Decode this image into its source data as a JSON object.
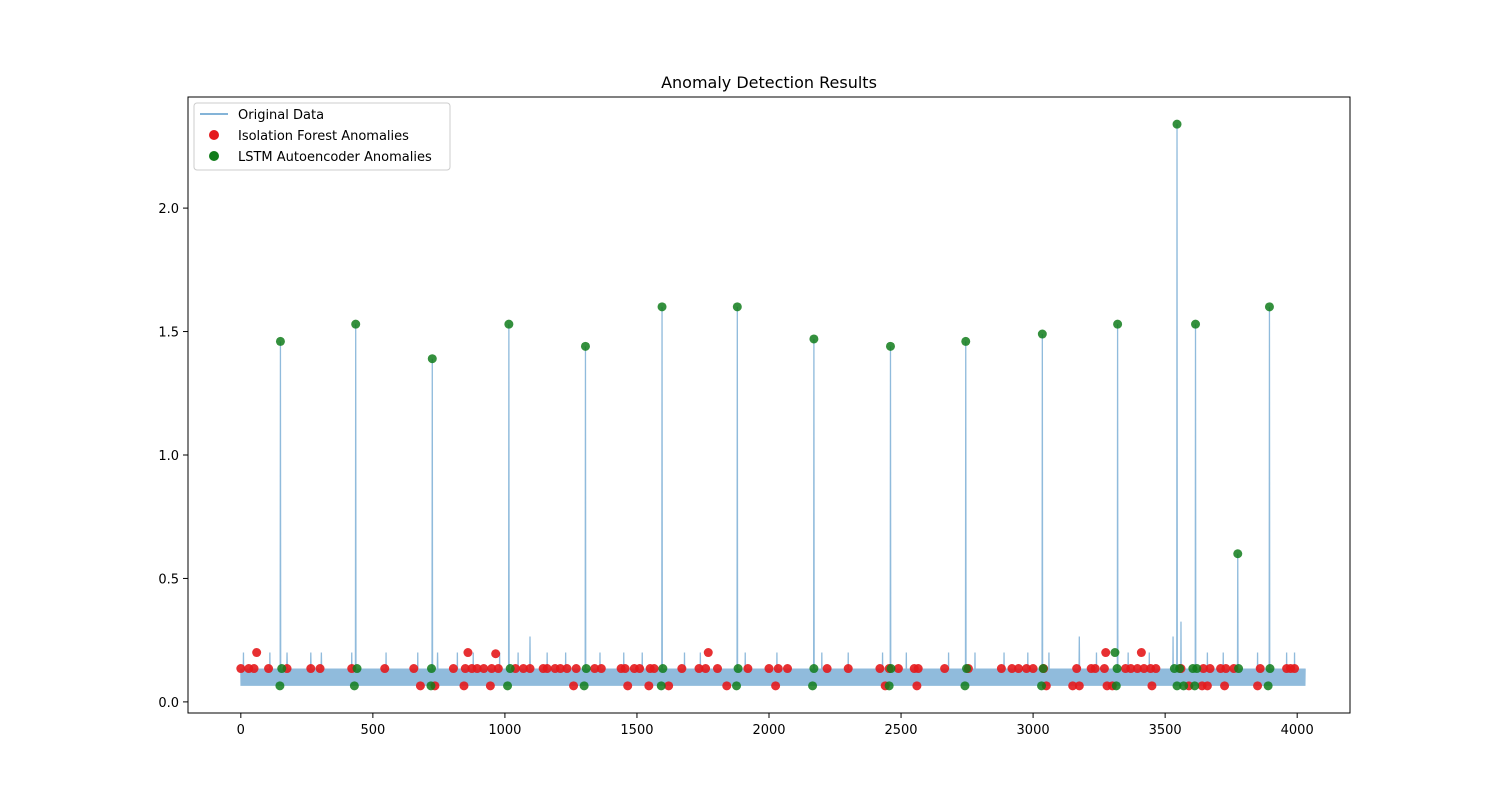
{
  "chart_data": {
    "type": "line+scatter",
    "title": "Anomaly Detection Results",
    "xlabel": "",
    "ylabel": "",
    "xlim": [
      -200,
      4200
    ],
    "ylim": [
      -0.045,
      2.45
    ],
    "x_ticks": [
      0,
      500,
      1000,
      1500,
      2000,
      2500,
      3000,
      3500,
      4000
    ],
    "y_ticks": [
      0.0,
      0.5,
      1.0,
      1.5,
      2.0
    ],
    "x_tick_labels": [
      "0",
      "500",
      "1000",
      "1500",
      "2000",
      "2500",
      "3000",
      "3500",
      "4000"
    ],
    "y_tick_labels": [
      "0.0",
      "0.5",
      "1.0",
      "1.5",
      "2.0"
    ],
    "grid": false,
    "legend_position": "top-left",
    "colors": {
      "original": "#84b4d8",
      "isolation_forest": "#e41a1c",
      "lstm": "#117d1b"
    },
    "series": [
      {
        "name": "Original Data",
        "kind": "line",
        "baseline_band": [
          0.065,
          0.135
        ],
        "x_range": [
          0,
          4030
        ],
        "spikes": [
          {
            "x": 150,
            "y": 1.46
          },
          {
            "x": 435,
            "y": 1.53
          },
          {
            "x": 725,
            "y": 1.39
          },
          {
            "x": 1015,
            "y": 1.53
          },
          {
            "x": 1305,
            "y": 1.44
          },
          {
            "x": 1595,
            "y": 1.6
          },
          {
            "x": 1880,
            "y": 1.6
          },
          {
            "x": 2170,
            "y": 1.47
          },
          {
            "x": 2460,
            "y": 1.44
          },
          {
            "x": 2745,
            "y": 1.46
          },
          {
            "x": 3035,
            "y": 1.49
          },
          {
            "x": 3320,
            "y": 1.53
          },
          {
            "x": 3545,
            "y": 2.34
          },
          {
            "x": 3615,
            "y": 1.53
          },
          {
            "x": 3775,
            "y": 0.6
          },
          {
            "x": 3895,
            "y": 1.6
          }
        ],
        "minor_spikes": [
          {
            "x": 10,
            "y": 0.2
          },
          {
            "x": 110,
            "y": 0.2
          },
          {
            "x": 175,
            "y": 0.2
          },
          {
            "x": 265,
            "y": 0.2
          },
          {
            "x": 305,
            "y": 0.2
          },
          {
            "x": 420,
            "y": 0.2
          },
          {
            "x": 550,
            "y": 0.2
          },
          {
            "x": 670,
            "y": 0.2
          },
          {
            "x": 745,
            "y": 0.2
          },
          {
            "x": 820,
            "y": 0.2
          },
          {
            "x": 880,
            "y": 0.2
          },
          {
            "x": 980,
            "y": 0.2
          },
          {
            "x": 1050,
            "y": 0.2
          },
          {
            "x": 1095,
            "y": 0.265
          },
          {
            "x": 1160,
            "y": 0.2
          },
          {
            "x": 1230,
            "y": 0.2
          },
          {
            "x": 1360,
            "y": 0.2
          },
          {
            "x": 1450,
            "y": 0.2
          },
          {
            "x": 1520,
            "y": 0.2
          },
          {
            "x": 1680,
            "y": 0.2
          },
          {
            "x": 1740,
            "y": 0.2
          },
          {
            "x": 1910,
            "y": 0.2
          },
          {
            "x": 2030,
            "y": 0.2
          },
          {
            "x": 2200,
            "y": 0.2
          },
          {
            "x": 2300,
            "y": 0.2
          },
          {
            "x": 2430,
            "y": 0.2
          },
          {
            "x": 2520,
            "y": 0.2
          },
          {
            "x": 2680,
            "y": 0.2
          },
          {
            "x": 2780,
            "y": 0.2
          },
          {
            "x": 2890,
            "y": 0.2
          },
          {
            "x": 2980,
            "y": 0.2
          },
          {
            "x": 3060,
            "y": 0.2
          },
          {
            "x": 3175,
            "y": 0.265
          },
          {
            "x": 3240,
            "y": 0.2
          },
          {
            "x": 3360,
            "y": 0.2
          },
          {
            "x": 3440,
            "y": 0.2
          },
          {
            "x": 3530,
            "y": 0.265
          },
          {
            "x": 3560,
            "y": 0.325
          },
          {
            "x": 3660,
            "y": 0.2
          },
          {
            "x": 3720,
            "y": 0.2
          },
          {
            "x": 3850,
            "y": 0.2
          },
          {
            "x": 3960,
            "y": 0.2
          },
          {
            "x": 3990,
            "y": 0.2
          }
        ]
      },
      {
        "name": "Isolation Forest Anomalies",
        "kind": "scatter",
        "points": [
          [
            0,
            0.135
          ],
          [
            30,
            0.135
          ],
          [
            50,
            0.135
          ],
          [
            60,
            0.2
          ],
          [
            105,
            0.135
          ],
          [
            175,
            0.135
          ],
          [
            265,
            0.135
          ],
          [
            300,
            0.135
          ],
          [
            420,
            0.135
          ],
          [
            545,
            0.135
          ],
          [
            655,
            0.135
          ],
          [
            680,
            0.065
          ],
          [
            735,
            0.065
          ],
          [
            805,
            0.135
          ],
          [
            845,
            0.065
          ],
          [
            850,
            0.135
          ],
          [
            860,
            0.2
          ],
          [
            875,
            0.135
          ],
          [
            895,
            0.135
          ],
          [
            920,
            0.135
          ],
          [
            945,
            0.065
          ],
          [
            950,
            0.135
          ],
          [
            965,
            0.195
          ],
          [
            975,
            0.135
          ],
          [
            1040,
            0.135
          ],
          [
            1070,
            0.135
          ],
          [
            1095,
            0.135
          ],
          [
            1145,
            0.135
          ],
          [
            1160,
            0.135
          ],
          [
            1190,
            0.135
          ],
          [
            1210,
            0.135
          ],
          [
            1235,
            0.135
          ],
          [
            1260,
            0.065
          ],
          [
            1270,
            0.135
          ],
          [
            1340,
            0.135
          ],
          [
            1365,
            0.135
          ],
          [
            1440,
            0.135
          ],
          [
            1455,
            0.135
          ],
          [
            1465,
            0.065
          ],
          [
            1490,
            0.135
          ],
          [
            1510,
            0.135
          ],
          [
            1545,
            0.065
          ],
          [
            1550,
            0.135
          ],
          [
            1565,
            0.135
          ],
          [
            1620,
            0.065
          ],
          [
            1670,
            0.135
          ],
          [
            1735,
            0.135
          ],
          [
            1760,
            0.135
          ],
          [
            1770,
            0.2
          ],
          [
            1805,
            0.135
          ],
          [
            1840,
            0.065
          ],
          [
            1920,
            0.135
          ],
          [
            2000,
            0.135
          ],
          [
            2025,
            0.065
          ],
          [
            2035,
            0.135
          ],
          [
            2070,
            0.135
          ],
          [
            2220,
            0.135
          ],
          [
            2300,
            0.135
          ],
          [
            2420,
            0.135
          ],
          [
            2440,
            0.065
          ],
          [
            2455,
            0.135
          ],
          [
            2490,
            0.135
          ],
          [
            2550,
            0.135
          ],
          [
            2560,
            0.065
          ],
          [
            2565,
            0.135
          ],
          [
            2665,
            0.135
          ],
          [
            2755,
            0.135
          ],
          [
            2880,
            0.135
          ],
          [
            2920,
            0.135
          ],
          [
            2945,
            0.135
          ],
          [
            2975,
            0.135
          ],
          [
            3000,
            0.135
          ],
          [
            3040,
            0.135
          ],
          [
            3050,
            0.065
          ],
          [
            3150,
            0.065
          ],
          [
            3165,
            0.135
          ],
          [
            3175,
            0.065
          ],
          [
            3220,
            0.135
          ],
          [
            3235,
            0.135
          ],
          [
            3270,
            0.135
          ],
          [
            3275,
            0.2
          ],
          [
            3280,
            0.065
          ],
          [
            3300,
            0.065
          ],
          [
            3350,
            0.135
          ],
          [
            3370,
            0.135
          ],
          [
            3395,
            0.135
          ],
          [
            3410,
            0.2
          ],
          [
            3420,
            0.135
          ],
          [
            3445,
            0.135
          ],
          [
            3450,
            0.065
          ],
          [
            3465,
            0.135
          ],
          [
            3560,
            0.135
          ],
          [
            3590,
            0.065
          ],
          [
            3640,
            0.065
          ],
          [
            3645,
            0.135
          ],
          [
            3660,
            0.065
          ],
          [
            3670,
            0.135
          ],
          [
            3710,
            0.135
          ],
          [
            3725,
            0.065
          ],
          [
            3730,
            0.135
          ],
          [
            3760,
            0.135
          ],
          [
            3850,
            0.065
          ],
          [
            3860,
            0.135
          ],
          [
            3960,
            0.135
          ],
          [
            3975,
            0.135
          ],
          [
            3990,
            0.135
          ]
        ]
      },
      {
        "name": "LSTM Autoencoder Anomalies",
        "kind": "scatter",
        "points": [
          [
            150,
            1.46
          ],
          [
            148,
            0.065
          ],
          [
            155,
            0.135
          ],
          [
            435,
            1.53
          ],
          [
            430,
            0.065
          ],
          [
            440,
            0.135
          ],
          [
            725,
            1.39
          ],
          [
            720,
            0.065
          ],
          [
            722,
            0.135
          ],
          [
            1015,
            1.53
          ],
          [
            1010,
            0.065
          ],
          [
            1020,
            0.135
          ],
          [
            1305,
            1.44
          ],
          [
            1300,
            0.065
          ],
          [
            1308,
            0.135
          ],
          [
            1595,
            1.6
          ],
          [
            1592,
            0.065
          ],
          [
            1598,
            0.135
          ],
          [
            1880,
            1.6
          ],
          [
            1877,
            0.065
          ],
          [
            1883,
            0.135
          ],
          [
            2170,
            1.47
          ],
          [
            2165,
            0.065
          ],
          [
            2170,
            0.135
          ],
          [
            2460,
            1.44
          ],
          [
            2455,
            0.065
          ],
          [
            2462,
            0.135
          ],
          [
            2745,
            1.46
          ],
          [
            2742,
            0.065
          ],
          [
            2748,
            0.135
          ],
          [
            3035,
            1.49
          ],
          [
            3032,
            0.065
          ],
          [
            3038,
            0.135
          ],
          [
            3320,
            1.53
          ],
          [
            3310,
            0.2
          ],
          [
            3315,
            0.065
          ],
          [
            3318,
            0.135
          ],
          [
            3545,
            2.34
          ],
          [
            3535,
            0.135
          ],
          [
            3545,
            0.065
          ],
          [
            3555,
            0.135
          ],
          [
            3570,
            0.065
          ],
          [
            3615,
            1.53
          ],
          [
            3605,
            0.135
          ],
          [
            3612,
            0.065
          ],
          [
            3620,
            0.135
          ],
          [
            3775,
            0.6
          ],
          [
            3778,
            0.135
          ],
          [
            3895,
            1.6
          ],
          [
            3890,
            0.065
          ],
          [
            3897,
            0.135
          ]
        ]
      }
    ]
  }
}
